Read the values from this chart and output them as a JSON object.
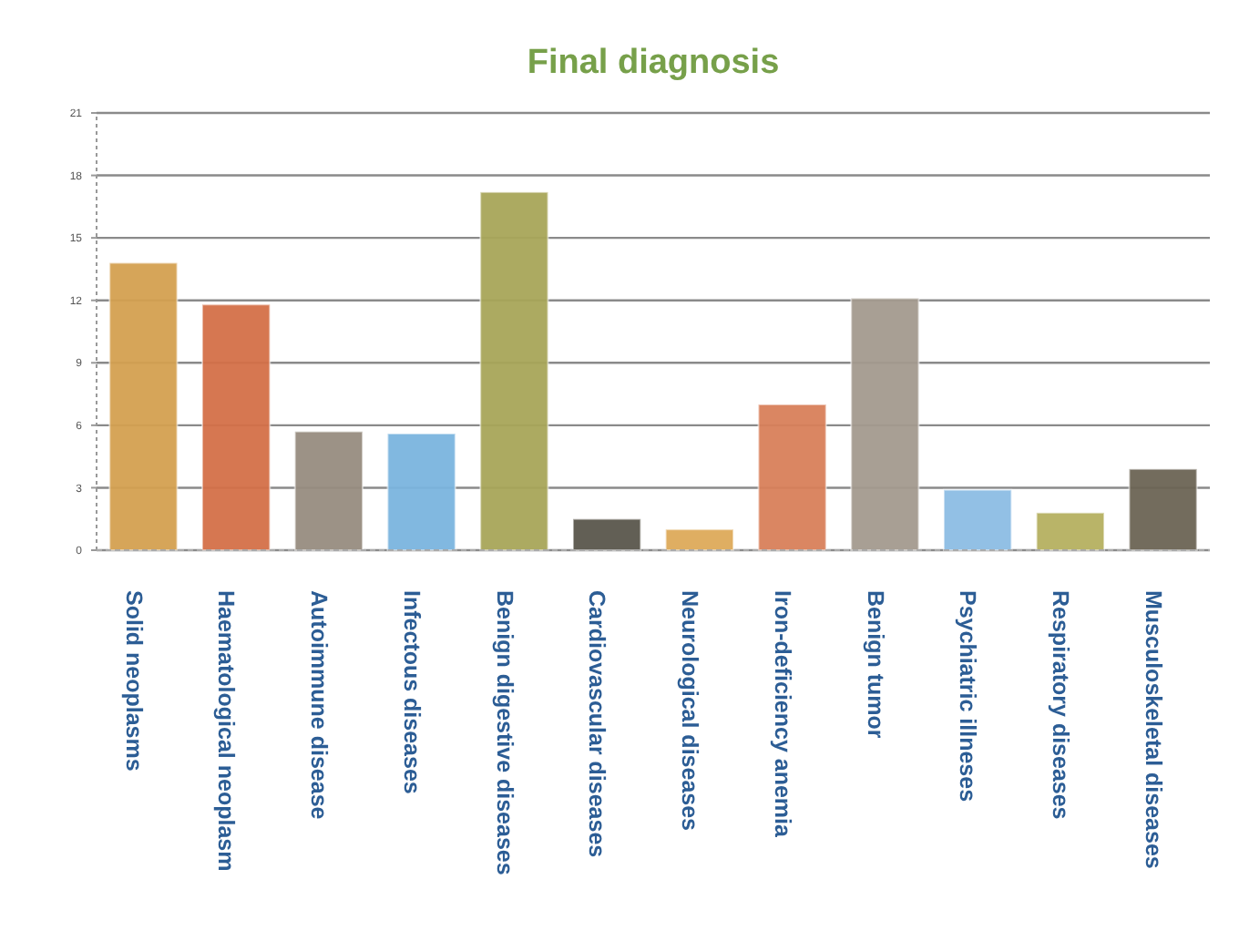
{
  "chart_data": {
    "type": "bar",
    "title": "Final diagnosis",
    "categories": [
      "Solid neoplasms",
      "Haematological neoplasm",
      "Autoimmune disease",
      "Infectous diseases",
      "Benign digestive diseases",
      "Cardiovascular diseases",
      "Neurological diseases",
      "Iron-deficiency anemia",
      "Benign tumor",
      "Psychiatric illneses",
      "Respiratory diseases",
      "Musculoskeletal diseases"
    ],
    "values": [
      13.8,
      11.8,
      5.7,
      5.6,
      17.2,
      1.5,
      1.0,
      7.0,
      12.1,
      2.9,
      1.8,
      3.9
    ],
    "colors": [
      "#d4a050",
      "#d47048",
      "#978c80",
      "#7ab4de",
      "#a8a558",
      "#5a564c",
      "#ddaa5a",
      "#d8805a",
      "#a39a8e",
      "#8cbde4",
      "#b5b060",
      "#6c6454"
    ],
    "ylim": [
      0,
      21
    ],
    "yticks": [
      0,
      3,
      6,
      9,
      12,
      15,
      18,
      21
    ],
    "grid": "y"
  }
}
